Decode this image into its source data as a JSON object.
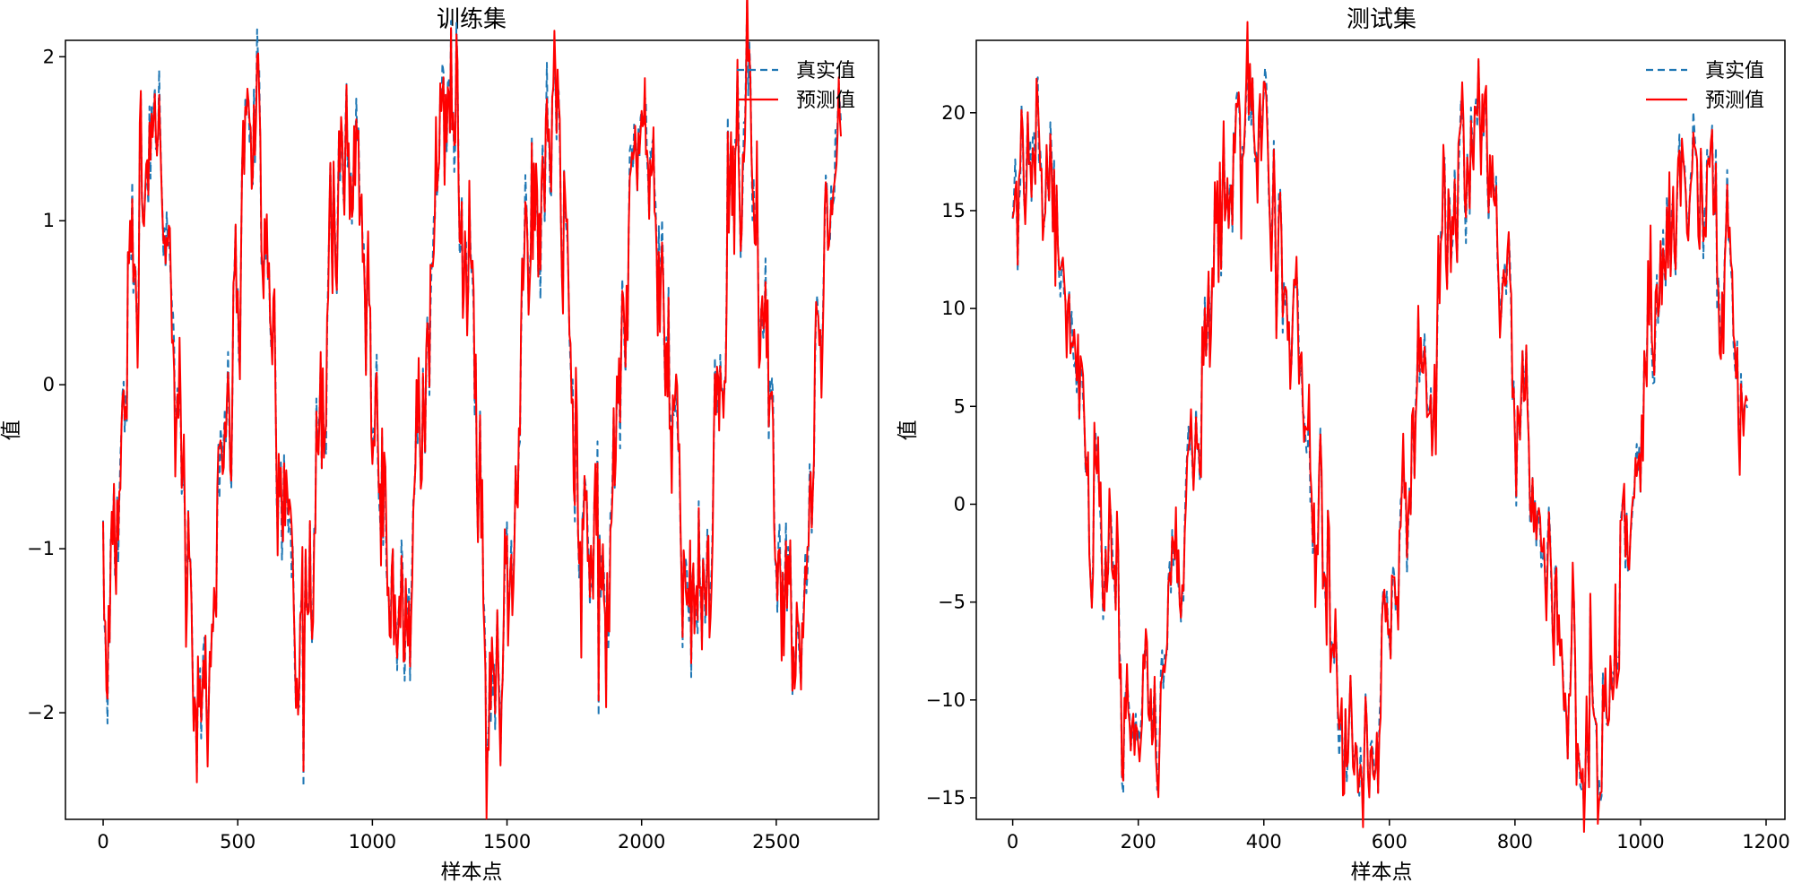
{
  "figure": {
    "background": "#ffffff"
  },
  "chart_data": [
    {
      "type": "line",
      "title": "训练集",
      "xlabel": "样本点",
      "ylabel": "值",
      "xlim": [
        -140,
        2880
      ],
      "ylim": [
        -2.65,
        2.1
      ],
      "xticks": [
        0,
        500,
        1000,
        1500,
        2000,
        2500
      ],
      "yticks": [
        -2,
        -1,
        0,
        1,
        2
      ],
      "xtick_labels": [
        "0",
        "500",
        "1000",
        "1500",
        "2000",
        "2500"
      ],
      "ytick_labels": [
        "−2",
        "−1",
        "0",
        "1",
        "2"
      ],
      "legend_position": "top-right",
      "grid": false,
      "generator": {
        "n": 2740,
        "step": 4,
        "offset": 0,
        "amplitude": 1.6,
        "period": 366,
        "phase": -1.5708,
        "trend": 0,
        "noise": 0.28,
        "seed": 7
      },
      "series": [
        {
          "name": "真实值",
          "color": "#1f77b4",
          "dash": "8,5",
          "width": 2
        },
        {
          "name": "预测值",
          "color": "#ff0000",
          "dash": "",
          "width": 2
        }
      ],
      "spikes": [
        {
          "x": 560,
          "y": 1.8
        },
        {
          "x": 745,
          "y": -2.45
        },
        {
          "x": 1285,
          "y": 1.87
        },
        {
          "x": 1455,
          "y": -2.1
        },
        {
          "x": 2385,
          "y": 1.6
        },
        {
          "x": 2735,
          "y": 1.72
        },
        {
          "x": 1840,
          "y": -2.02
        }
      ]
    },
    {
      "type": "line",
      "title": "测试集",
      "xlabel": "样本点",
      "ylabel": "值",
      "xlim": [
        -58,
        1230
      ],
      "ylim": [
        -16.1,
        23.7
      ],
      "xticks": [
        0,
        200,
        400,
        600,
        800,
        1000,
        1200
      ],
      "yticks": [
        -15,
        -10,
        -5,
        0,
        5,
        10,
        15,
        20
      ],
      "xtick_labels": [
        "0",
        "200",
        "400",
        "600",
        "800",
        "1000",
        "1200"
      ],
      "ytick_labels": [
        "−15",
        "−10",
        "−5",
        "0",
        "5",
        "10",
        "15",
        "20"
      ],
      "legend_position": "top-right",
      "grid": false,
      "generator": {
        "n": 1170,
        "step": 2,
        "offset": 3.5,
        "amplitude": 14.5,
        "period": 355,
        "phase": 1.2,
        "trend": 0,
        "noise": 2.2,
        "seed": 19
      },
      "series": [
        {
          "name": "真实值",
          "color": "#1f77b4",
          "dash": "8,5",
          "width": 2
        },
        {
          "name": "预测值",
          "color": "#ff0000",
          "dash": "",
          "width": 2
        }
      ],
      "spikes": [
        {
          "x": 405,
          "y": 21.6
        },
        {
          "x": 532,
          "y": -14.2
        },
        {
          "x": 905,
          "y": -14.4
        },
        {
          "x": 1120,
          "y": 18.2
        },
        {
          "x": 1165,
          "y": 4.3
        }
      ]
    }
  ]
}
